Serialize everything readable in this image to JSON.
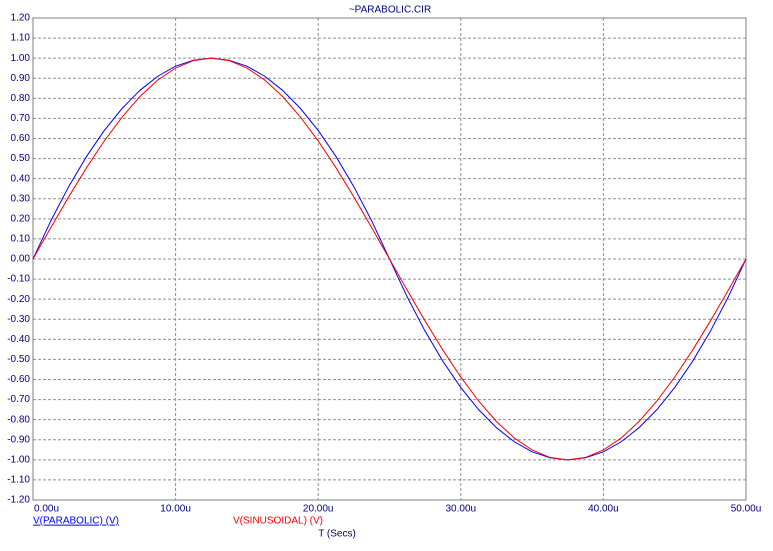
{
  "chart_data": {
    "type": "line",
    "title": "~PARABOLIC.CIR",
    "xlabel": "T (Secs)",
    "x": [
      0,
      1.25,
      2.5,
      3.75,
      5,
      6.25,
      7.5,
      8.75,
      10,
      11.25,
      12.5,
      13.75,
      15,
      16.25,
      17.5,
      18.75,
      20,
      21.25,
      22.5,
      23.75,
      25,
      26.25,
      27.5,
      28.75,
      30,
      31.25,
      32.5,
      33.75,
      35,
      36.25,
      37.5,
      38.75,
      40,
      41.25,
      42.5,
      43.75,
      45,
      46.25,
      47.5,
      48.75,
      50
    ],
    "series": [
      {
        "name": "V(PARABOLIC) (V)",
        "color": "#0000ff",
        "values": [
          0,
          0.19,
          0.36,
          0.51,
          0.64,
          0.75,
          0.84,
          0.91,
          0.96,
          0.99,
          1,
          0.99,
          0.96,
          0.91,
          0.84,
          0.75,
          0.64,
          0.51,
          0.36,
          0.19,
          0,
          -0.19,
          -0.36,
          -0.51,
          -0.64,
          -0.75,
          -0.84,
          -0.91,
          -0.96,
          -0.99,
          -1,
          -0.99,
          -0.96,
          -0.91,
          -0.84,
          -0.75,
          -0.64,
          -0.51,
          -0.36,
          -0.19,
          0
        ]
      },
      {
        "name": "V(SINUSOIDAL) (V)",
        "color": "#ff0000",
        "values": [
          0,
          0.156,
          0.309,
          0.454,
          0.588,
          0.707,
          0.809,
          0.891,
          0.951,
          0.988,
          1,
          0.988,
          0.951,
          0.891,
          0.809,
          0.707,
          0.588,
          0.454,
          0.309,
          0.156,
          0,
          -0.156,
          -0.309,
          -0.454,
          -0.588,
          -0.707,
          -0.809,
          -0.891,
          -0.951,
          -0.988,
          -1,
          -0.988,
          -0.951,
          -0.891,
          -0.809,
          -0.707,
          -0.588,
          -0.454,
          -0.309,
          -0.156,
          0
        ]
      }
    ],
    "xlim": [
      0,
      50
    ],
    "xticks": [
      {
        "value": 0,
        "label": "0.00u"
      },
      {
        "value": 10,
        "label": "10.00u"
      },
      {
        "value": 20,
        "label": "20.00u"
      },
      {
        "value": 30,
        "label": "30.00u"
      },
      {
        "value": 40,
        "label": "40.00u"
      },
      {
        "value": 50,
        "label": "50.00u"
      }
    ],
    "ylim": [
      -1.2,
      1.2
    ],
    "yticks": [
      {
        "value": 1.2,
        "label": "1.20"
      },
      {
        "value": 1.1,
        "label": "1.10"
      },
      {
        "value": 1,
        "label": "1.00"
      },
      {
        "value": 0.9,
        "label": "0.90"
      },
      {
        "value": 0.8,
        "label": "0.80"
      },
      {
        "value": 0.7,
        "label": "0.70"
      },
      {
        "value": 0.6,
        "label": "0.60"
      },
      {
        "value": 0.5,
        "label": "0.50"
      },
      {
        "value": 0.4,
        "label": "0.40"
      },
      {
        "value": 0.3,
        "label": "0.30"
      },
      {
        "value": 0.2,
        "label": "0.20"
      },
      {
        "value": 0.1,
        "label": "0.10"
      },
      {
        "value": 0,
        "label": "0.00"
      },
      {
        "value": -0.1,
        "label": "-0.10"
      },
      {
        "value": -0.2,
        "label": "-0.20"
      },
      {
        "value": -0.3,
        "label": "-0.30"
      },
      {
        "value": -0.4,
        "label": "-0.40"
      },
      {
        "value": -0.5,
        "label": "-0.50"
      },
      {
        "value": -0.6,
        "label": "-0.60"
      },
      {
        "value": -0.7,
        "label": "-0.70"
      },
      {
        "value": -0.8,
        "label": "-0.80"
      },
      {
        "value": -0.9,
        "label": "-0.90"
      },
      {
        "value": -1,
        "label": "-1.00"
      },
      {
        "value": -1.1,
        "label": "-1.10"
      },
      {
        "value": -1.2,
        "label": "-1.20"
      }
    ],
    "grid": true
  }
}
